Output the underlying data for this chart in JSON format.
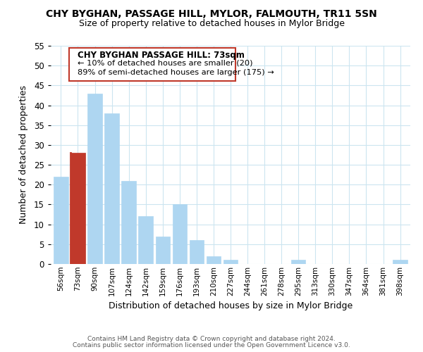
{
  "title": "CHY BYGHAN, PASSAGE HILL, MYLOR, FALMOUTH, TR11 5SN",
  "subtitle": "Size of property relative to detached houses in Mylor Bridge",
  "xlabel": "Distribution of detached houses by size in Mylor Bridge",
  "ylabel": "Number of detached properties",
  "bar_labels": [
    "56sqm",
    "73sqm",
    "90sqm",
    "107sqm",
    "124sqm",
    "142sqm",
    "159sqm",
    "176sqm",
    "193sqm",
    "210sqm",
    "227sqm",
    "244sqm",
    "261sqm",
    "278sqm",
    "295sqm",
    "313sqm",
    "330sqm",
    "347sqm",
    "364sqm",
    "381sqm",
    "398sqm"
  ],
  "bar_values": [
    22,
    28,
    43,
    38,
    21,
    12,
    7,
    15,
    6,
    2,
    1,
    0,
    0,
    0,
    1,
    0,
    0,
    0,
    0,
    0,
    1
  ],
  "highlight_index": 1,
  "highlight_color": "#c0392b",
  "normal_color": "#aed6f1",
  "ylim": [
    0,
    55
  ],
  "yticks": [
    0,
    5,
    10,
    15,
    20,
    25,
    30,
    35,
    40,
    45,
    50,
    55
  ],
  "annotation_title": "CHY BYGHAN PASSAGE HILL: 73sqm",
  "annotation_line1": "← 10% of detached houses are smaller (20)",
  "annotation_line2": "89% of semi-detached houses are larger (175) →",
  "footer_line1": "Contains HM Land Registry data © Crown copyright and database right 2024.",
  "footer_line2": "Contains public sector information licensed under the Open Government Licence v3.0.",
  "background_color": "#ffffff",
  "grid_color": "#cce5f0",
  "annotation_box_color": "#ffffff",
  "annotation_box_edge": "#c0392b"
}
